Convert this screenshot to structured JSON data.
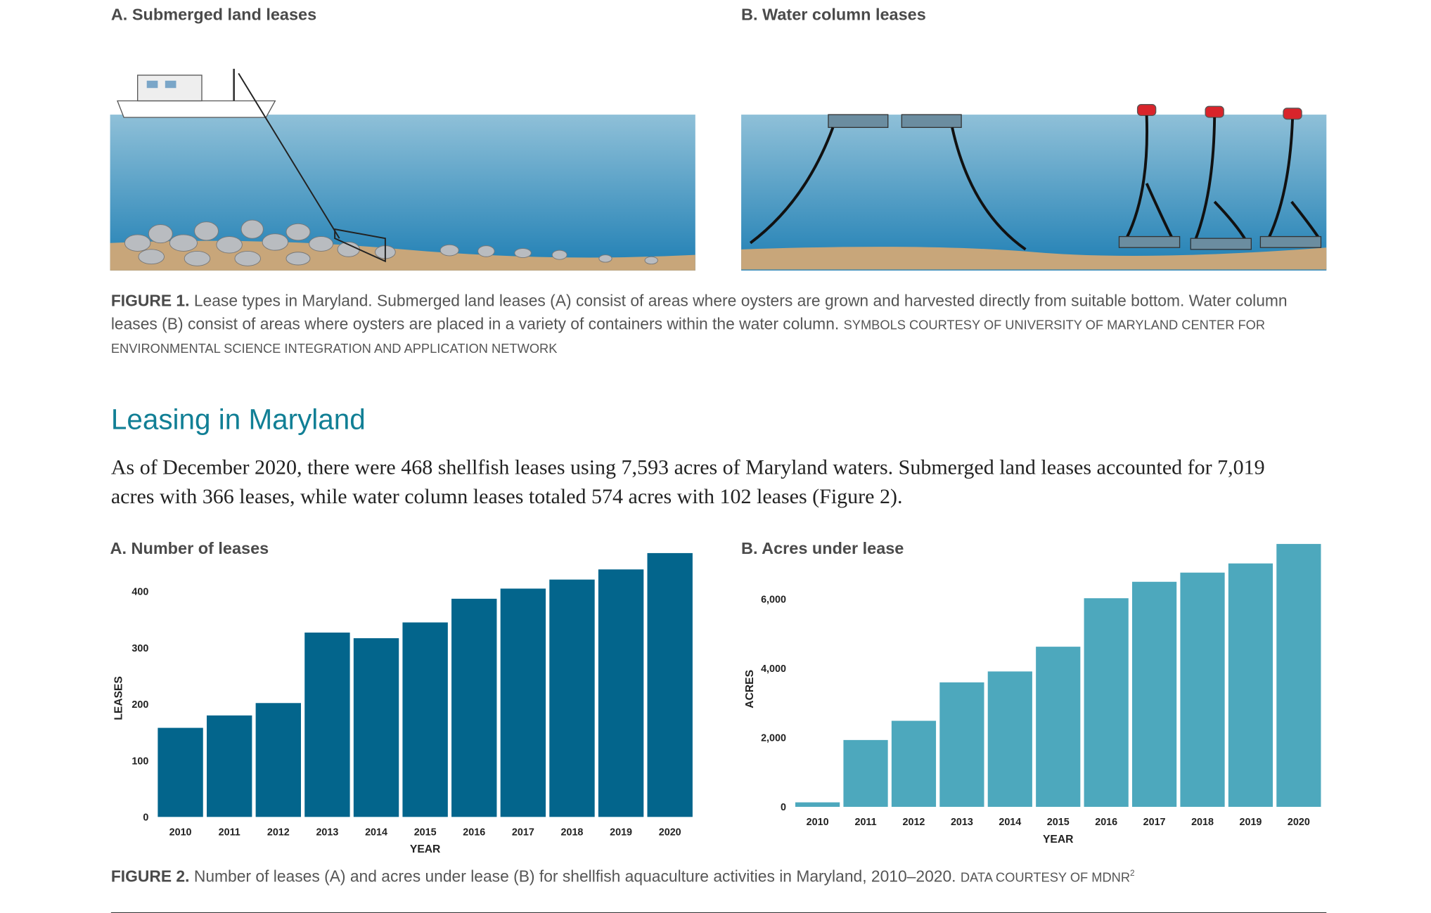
{
  "figure1": {
    "panel_a_title": "A. Submerged land leases",
    "panel_b_title": "B. Water column leases",
    "caption_label": "FIGURE 1.",
    "caption_text": "Lease types in Maryland. Submerged land leases (A) consist of areas where oysters are grown and harvested directly from suitable bottom. Water column leases (B) consist of areas where oysters are placed in a variety of containers within the water column.",
    "caption_credit": "SYMBOLS COURTESY OF UNIVERSITY OF MARYLAND CENTER FOR ENVIRONMENTAL SCIENCE INTEGRATION AND APPLICATION NETWORK"
  },
  "section_heading": "Leasing in Maryland",
  "paragraph": "As of December 2020, there were 468 shellfish leases using 7,593 acres of Maryland waters. Submerged land leases accounted for 7,019 acres with 366 leases, while water column leases totaled 574 acres with 102 leases (Figure 2).",
  "chart_data": [
    {
      "type": "bar",
      "title": "A. Number of leases",
      "x_label": "YEAR",
      "y_label": "LEASES",
      "color": "#03658c",
      "categories": [
        "2010",
        "2011",
        "2012",
        "2013",
        "2014",
        "2015",
        "2016",
        "2017",
        "2018",
        "2019",
        "2020"
      ],
      "values": [
        158,
        180,
        202,
        327,
        317,
        345,
        387,
        405,
        421,
        439,
        468
      ],
      "ylim": [
        0,
        470
      ],
      "yticks": [
        0,
        100,
        200,
        300,
        400
      ]
    },
    {
      "type": "bar",
      "title": "B. Acres under lease",
      "x_label": "YEAR",
      "y_label": "ACRES",
      "color": "#4da8bd",
      "categories": [
        "2010",
        "2011",
        "2012",
        "2013",
        "2014",
        "2015",
        "2016",
        "2017",
        "2018",
        "2019",
        "2020"
      ],
      "values": [
        130,
        1930,
        2485,
        3595,
        3910,
        4625,
        6025,
        6500,
        6765,
        7030,
        7593
      ],
      "ylim": [
        0,
        7600
      ],
      "yticks": [
        0,
        {
          "value": 2000,
          "label": "2,000"
        },
        {
          "value": 4000,
          "label": "4,000"
        },
        {
          "value": 6000,
          "label": "6,000"
        }
      ]
    }
  ],
  "figure2": {
    "caption_label": "FIGURE 2.",
    "caption_text": "Number of leases (A) and acres under lease (B) for shellfish aquaculture activities in Maryland, 2010–2020.",
    "caption_credit": "DATA COURTESY OF MDNR",
    "caption_note": "2"
  }
}
